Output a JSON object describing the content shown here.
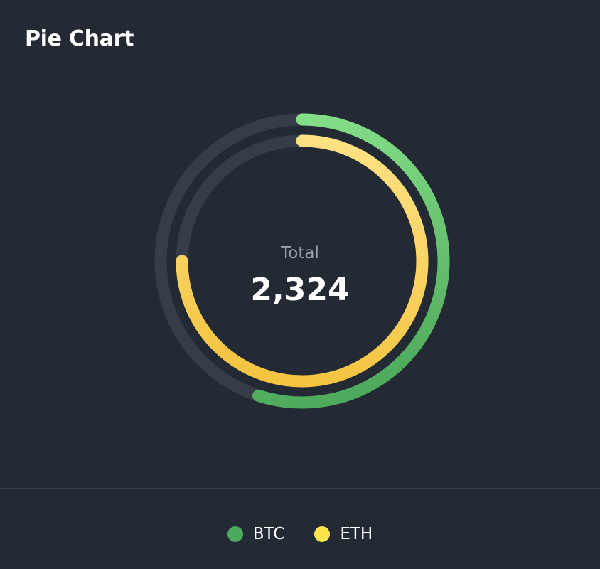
{
  "header": {
    "title": "Pie Chart"
  },
  "center": {
    "label": "Total",
    "value": "2,324"
  },
  "colors": {
    "background": "#232a34",
    "track": "#363c48",
    "btc": "#4caa5c",
    "eth": "#fbe54a"
  },
  "chart_data": {
    "type": "pie",
    "title": "Pie Chart",
    "variant": "concentric-radial-rings",
    "total": 2324,
    "series": [
      {
        "name": "BTC",
        "percent": 0.55,
        "color": "#4caa5c",
        "gradient": [
          "#86e08a",
          "#4ca85a"
        ]
      },
      {
        "name": "ETH",
        "percent": 0.75,
        "color": "#fbe54a",
        "gradient": [
          "#ffe284",
          "#f3c23c"
        ]
      }
    ],
    "legend": [
      "BTC",
      "ETH"
    ],
    "legend_position": "bottom-center"
  }
}
